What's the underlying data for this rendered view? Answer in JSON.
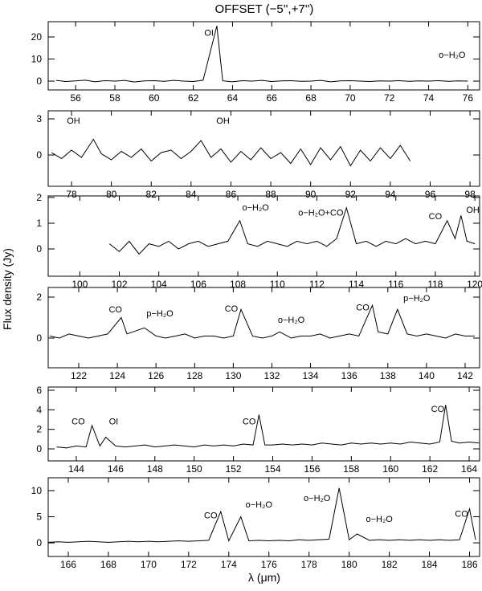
{
  "chart_data": [
    {
      "type": "line",
      "title": "OFFSET (−5'',+7'')",
      "xlim": [
        54.6,
        76.6
      ],
      "ylim": [
        -4,
        26.9
      ],
      "xticks": [
        56,
        58,
        60,
        62,
        64,
        66,
        68,
        70,
        72,
        74,
        76
      ],
      "yticks": [
        0,
        10,
        20
      ],
      "series": [
        {
          "color": "#000000",
          "x": [
            55,
            55.5,
            56,
            56.5,
            57,
            57.5,
            58,
            58.5,
            59,
            59.5,
            60,
            60.5,
            61,
            61.5,
            62,
            62.5,
            63.2,
            63.5,
            64,
            64.5,
            65,
            65.5,
            66,
            66.5,
            67,
            67.5,
            68,
            68.5,
            69,
            69.5,
            70,
            70.5,
            71,
            71.5,
            72,
            72.5,
            73,
            73.5,
            74,
            74.5,
            75,
            75.5,
            76
          ],
          "values": [
            0.3,
            -0.2,
            0.1,
            0.4,
            -0.3,
            0.2,
            0,
            0.3,
            -0.4,
            0.1,
            0.2,
            -0.1,
            0.3,
            0,
            -0.2,
            0.4,
            25,
            0.1,
            -0.3,
            0.2,
            0,
            0.3,
            -0.2,
            0.1,
            0.2,
            -0.1,
            0,
            0.3,
            -0.3,
            0.1,
            0.2,
            0,
            -0.2,
            0.1,
            0,
            0.2,
            -0.1,
            0.1,
            0,
            0.2,
            -0.1,
            0.1,
            0
          ]
        }
      ],
      "annotations": [
        {
          "text": "OI",
          "x": 62.8,
          "y": 20.5
        },
        {
          "text": "o−H₂O",
          "x": 75.2,
          "y": 10.5
        }
      ]
    },
    {
      "type": "line",
      "ylabel": "Flux density (Jy)",
      "xlim": [
        76.83,
        98.48
      ],
      "ylim": [
        -2.6,
        3.67
      ],
      "xticks": [
        78,
        80,
        82,
        84,
        86,
        88,
        90,
        92,
        94,
        96,
        98
      ],
      "yticks": [
        0,
        3
      ],
      "series": [
        {
          "color": "#000000",
          "x": [
            77,
            77.5,
            78,
            78.5,
            79.1,
            79.5,
            80,
            80.5,
            81,
            81.5,
            82,
            82.5,
            83,
            83.5,
            84,
            84.5,
            85,
            85.5,
            86,
            86.5,
            87,
            87.5,
            88,
            88.5,
            89,
            89.5,
            90,
            90.5,
            91,
            91.5,
            92,
            92.5,
            93,
            93.5,
            94,
            94.5,
            95
          ],
          "values": [
            0.2,
            -0.3,
            0.4,
            -0.2,
            1.3,
            0.1,
            -0.4,
            0.3,
            -0.2,
            0.5,
            -0.5,
            0.2,
            0.4,
            -0.3,
            0.3,
            1.2,
            -0.2,
            0.5,
            -0.6,
            0.3,
            -0.4,
            0.6,
            -0.3,
            0.2,
            -0.7,
            0.5,
            -0.8,
            0.6,
            -0.4,
            0.7,
            -0.9,
            0.4,
            -0.5,
            0.6,
            -0.3,
            0.8,
            -0.5
          ]
        }
      ],
      "annotations": [
        {
          "text": "OH",
          "x": 78.1,
          "y": 2.6
        },
        {
          "text": "OH",
          "x": 85.6,
          "y": 2.6
        }
      ]
    },
    {
      "type": "line",
      "xlim": [
        98.4,
        120.24
      ],
      "ylim": [
        -1.06,
        2.06
      ],
      "xticks": [
        100,
        102,
        104,
        106,
        108,
        110,
        112,
        114,
        116,
        118,
        120
      ],
      "yticks": [
        0,
        1,
        2
      ],
      "series": [
        {
          "color": "#000000",
          "x": [
            101.5,
            102,
            102.5,
            103,
            103.5,
            104,
            104.5,
            105,
            105.5,
            106,
            106.5,
            107,
            107.5,
            108.1,
            108.5,
            109,
            109.5,
            110,
            110.5,
            111,
            111.5,
            112,
            112.5,
            113,
            113.5,
            114,
            114.5,
            115,
            115.5,
            116,
            116.5,
            117,
            117.5,
            118,
            118.6,
            119,
            119.3,
            119.6,
            120
          ],
          "values": [
            0.2,
            -0.1,
            0.3,
            -0.2,
            0.2,
            0.1,
            0.3,
            0,
            0.2,
            0.3,
            0.1,
            0.2,
            0.3,
            1.1,
            0.2,
            0.1,
            0.3,
            0.2,
            0.1,
            0.3,
            0.2,
            0.3,
            0.1,
            0.4,
            1.6,
            0.2,
            0.3,
            0.1,
            0.3,
            0.2,
            0.4,
            0.2,
            0.3,
            0.2,
            1.1,
            0.4,
            1.3,
            0.3,
            0.2
          ]
        }
      ],
      "annotations": [
        {
          "text": "o−H₂O",
          "x": 108.9,
          "y": 1.5
        },
        {
          "text": "o−H₂O+CO",
          "x": 112.2,
          "y": 1.3
        },
        {
          "text": "CO",
          "x": 118.0,
          "y": 1.15
        },
        {
          "text": "OH",
          "x": 119.9,
          "y": 1.4
        }
      ]
    },
    {
      "type": "line",
      "xlim": [
        120.42,
        142.75
      ],
      "ylim": [
        -1.45,
        2.47
      ],
      "xticks": [
        122,
        124,
        126,
        128,
        130,
        132,
        134,
        136,
        138,
        140,
        142
      ],
      "yticks": [
        0,
        2
      ],
      "series": [
        {
          "color": "#000000",
          "x": [
            120.5,
            121,
            121.5,
            122,
            122.5,
            123,
            123.5,
            124.2,
            124.5,
            125.4,
            126,
            126.5,
            127,
            127.5,
            128,
            128.5,
            129,
            129.5,
            130,
            130.4,
            131,
            131.5,
            132,
            132.4,
            133,
            133.5,
            134,
            134.5,
            135,
            135.5,
            136,
            136.5,
            137.2,
            137.5,
            138,
            138.5,
            139,
            139.5,
            140,
            140.5,
            141,
            141.5,
            142,
            142.5
          ],
          "values": [
            0.1,
            0,
            0.2,
            0.1,
            0,
            0.1,
            0.2,
            1.0,
            0.2,
            0.5,
            0.1,
            0,
            0.1,
            0.2,
            0,
            0.1,
            0.1,
            0,
            0.1,
            1.4,
            0.1,
            0,
            0.1,
            0.3,
            0,
            0.1,
            0.1,
            0.2,
            0,
            0.1,
            0.2,
            0.1,
            1.6,
            0.3,
            0.2,
            1.4,
            0.2,
            0.1,
            0.2,
            0.1,
            0,
            0.2,
            0.1,
            0.1
          ]
        }
      ],
      "annotations": [
        {
          "text": "CO",
          "x": 123.9,
          "y": 1.25
        },
        {
          "text": "p−H₂O",
          "x": 126.2,
          "y": 1.05
        },
        {
          "text": "CO",
          "x": 129.9,
          "y": 1.3
        },
        {
          "text": "o−H₂O",
          "x": 133.0,
          "y": 0.75
        },
        {
          "text": "CO",
          "x": 136.7,
          "y": 1.35
        },
        {
          "text": "p−H₂O",
          "x": 139.5,
          "y": 1.8
        }
      ]
    },
    {
      "type": "line",
      "xlim": [
        142.57,
        164.53
      ],
      "ylim": [
        -1.23,
        6.33
      ],
      "xticks": [
        144,
        146,
        148,
        150,
        152,
        154,
        156,
        158,
        160,
        162,
        164
      ],
      "yticks": [
        0,
        2,
        4,
        6
      ],
      "series": [
        {
          "color": "#000000",
          "x": [
            143,
            143.5,
            144,
            144.5,
            144.8,
            145.2,
            145.5,
            146,
            146.5,
            147,
            147.5,
            148,
            148.5,
            149,
            149.5,
            150,
            150.5,
            151,
            151.5,
            152,
            152.5,
            153,
            153.3,
            153.6,
            154,
            154.5,
            155,
            155.5,
            156,
            156.5,
            157,
            157.5,
            158,
            158.5,
            159,
            159.5,
            160,
            160.5,
            161,
            161.5,
            162,
            162.5,
            162.8,
            163.1,
            163.5,
            164,
            164.5
          ],
          "values": [
            0.2,
            0.1,
            0.3,
            0.2,
            2.4,
            0.3,
            1.2,
            0.3,
            0.2,
            0.3,
            0.4,
            0.2,
            0.3,
            0.4,
            0.3,
            0.2,
            0.4,
            0.3,
            0.4,
            0.3,
            0.5,
            0.4,
            3.5,
            0.4,
            0.4,
            0.5,
            0.4,
            0.5,
            0.4,
            0.6,
            0.5,
            0.4,
            0.6,
            0.5,
            0.6,
            0.5,
            0.6,
            0.5,
            0.7,
            0.6,
            0.5,
            0.7,
            4.5,
            0.8,
            0.6,
            0.7,
            0.6
          ]
        }
      ],
      "annotations": [
        {
          "text": "CO",
          "x": 144.1,
          "y": 2.5
        },
        {
          "text": "OI",
          "x": 145.9,
          "y": 2.5
        },
        {
          "text": "CO",
          "x": 152.8,
          "y": 2.5
        },
        {
          "text": "CO",
          "x": 162.4,
          "y": 3.8
        }
      ]
    },
    {
      "type": "line",
      "xlabel": "λ (μm)",
      "xlim": [
        165.0,
        186.5
      ],
      "ylim": [
        -2.6,
        12.46
      ],
      "xticks": [
        166,
        168,
        170,
        172,
        174,
        176,
        178,
        180,
        182,
        184,
        186
      ],
      "yticks": [
        0,
        5,
        10
      ],
      "series": [
        {
          "color": "#000000",
          "x": [
            165,
            165.5,
            166,
            166.5,
            167,
            167.5,
            168,
            168.5,
            169,
            169.5,
            170,
            170.5,
            171,
            171.5,
            172,
            172.5,
            173,
            173.6,
            174,
            174.6,
            175,
            175.5,
            176,
            176.5,
            177,
            177.5,
            178,
            178.5,
            179,
            179.5,
            180,
            180.4,
            181,
            181.5,
            182,
            182.5,
            183,
            183.5,
            184,
            184.5,
            185,
            185.5,
            186,
            186.3
          ],
          "values": [
            0.1,
            0.2,
            0.1,
            0.2,
            0.3,
            0.2,
            0.1,
            0.2,
            0.3,
            0.2,
            0.3,
            0.2,
            0.3,
            0.4,
            0.3,
            0.4,
            0.5,
            6.0,
            0.4,
            5.0,
            0.4,
            0.5,
            0.4,
            0.5,
            0.4,
            0.6,
            0.5,
            0.6,
            0.7,
            10.5,
            0.6,
            1.7,
            0.5,
            0.6,
            0.5,
            0.6,
            0.5,
            0.6,
            0.5,
            0.6,
            0.5,
            0.6,
            6.5,
            0.6
          ]
        }
      ],
      "annotations": [
        {
          "text": "CO",
          "x": 173.1,
          "y": 4.7
        },
        {
          "text": "o−H₂O",
          "x": 175.5,
          "y": 6.8
        },
        {
          "text": "o−H₂O",
          "x": 178.4,
          "y": 8.0
        },
        {
          "text": "o−H₂O",
          "x": 181.5,
          "y": 4.0
        },
        {
          "text": "CO",
          "x": 185.6,
          "y": 5.0
        }
      ]
    }
  ]
}
